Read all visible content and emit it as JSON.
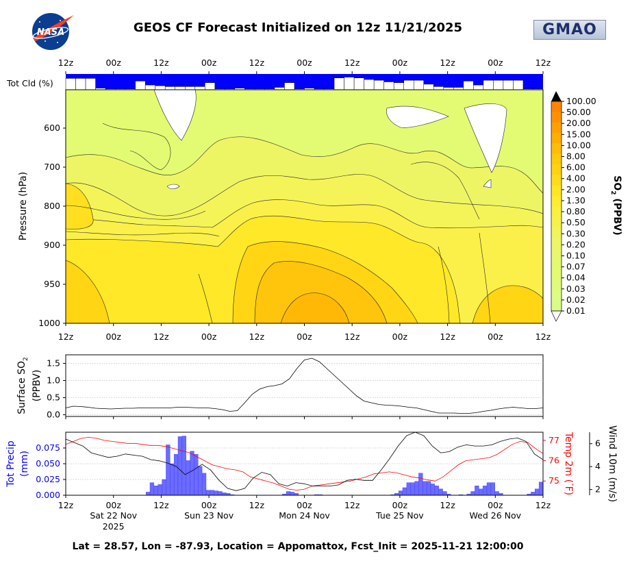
{
  "header": {
    "title": "GEOS CF Forecast Initialized on 12z 11/21/2025",
    "left_logo": "NASA",
    "right_logo": "GMAO"
  },
  "footer": {
    "caption": "Lat = 28.57, Lon = -87.93, Location = Appomattox, Fcst_Init = 2025-11-21 12:00:00"
  },
  "colors": {
    "precip": "#0000ff",
    "temp": "#ff0000",
    "wind": "#000000",
    "cloud": "#0000ff",
    "so2_low": "#e3fb72",
    "so2_high": "#fe8402"
  },
  "chart_data": [
    {
      "id": "cloud-strip",
      "type": "bar",
      "label": "Tot Cld (%)",
      "x_ticks": [
        "12z",
        "00z",
        "12z",
        "00z",
        "12z",
        "00z",
        "12z",
        "00z",
        "12z",
        "00z",
        "12z"
      ],
      "values": [
        72,
        72,
        72,
        10,
        5,
        5,
        5,
        55,
        30,
        25,
        20,
        20,
        20,
        20,
        45,
        5,
        5,
        10,
        5,
        5,
        5,
        15,
        45,
        5,
        10,
        5,
        5,
        75,
        80,
        75,
        65,
        60,
        50,
        45,
        60,
        60,
        35,
        20,
        15,
        15,
        55,
        30,
        60,
        60,
        60,
        60,
        5,
        5
      ]
    },
    {
      "id": "so2-profile",
      "type": "heatmap",
      "ylabel": "Pressure (hPa)",
      "y_ticks": [
        600,
        700,
        800,
        900,
        950,
        1000
      ],
      "ylim": [
        1000,
        500
      ],
      "x_ticks": [
        "12z",
        "00z",
        "12z",
        "00z",
        "12z",
        "00z",
        "12z",
        "00z",
        "12z",
        "00z",
        "12z"
      ],
      "colorbar": {
        "label": "SO",
        "label_sub": "2",
        "label_tail": " (PPBV)",
        "levels": [
          "100.00",
          "50.00",
          "20.00",
          "15.00",
          "10.00",
          "8.00",
          "6.00",
          "4.00",
          "2.00",
          "1.30",
          "0.80",
          "0.50",
          "0.30",
          "0.20",
          "0.10",
          "0.07",
          "0.04",
          "0.03",
          "0.02",
          "0.01"
        ],
        "colors": [
          "#fe8402",
          "#fe9202",
          "#ffa102",
          "#ffae02",
          "#ffbc08",
          "#ffc90e",
          "#ffd214",
          "#ffdc1b",
          "#ffe622",
          "#fdec30",
          "#faf03e",
          "#f6f24c",
          "#f1f45a",
          "#edf666",
          "#e8f76e",
          "#e5f872",
          "#e3fb72",
          "#e0fb7c",
          "#ddfc84",
          "#d8fc8c"
        ]
      }
    },
    {
      "id": "surface-so2",
      "type": "line",
      "ylabel": "Surface SO",
      "ylabel_sub": "2",
      "ylabel_unit": "(PPBV)",
      "y_ticks": [
        "0.0",
        "0.5",
        "1.0",
        "1.5"
      ],
      "ylim": [
        -0.05,
        1.75
      ],
      "values": [
        0.2,
        0.25,
        0.24,
        0.22,
        0.19,
        0.18,
        0.17,
        0.18,
        0.19,
        0.19,
        0.2,
        0.2,
        0.2,
        0.2,
        0.2,
        0.22,
        0.22,
        0.21,
        0.2,
        0.2,
        0.18,
        0.15,
        0.1,
        0.12,
        0.35,
        0.6,
        0.75,
        0.82,
        0.85,
        0.9,
        1.05,
        1.35,
        1.6,
        1.65,
        1.55,
        1.35,
        1.15,
        0.95,
        0.75,
        0.55,
        0.4,
        0.35,
        0.3,
        0.28,
        0.27,
        0.25,
        0.22,
        0.2,
        0.15,
        0.1,
        0.05,
        0.05,
        0.05,
        0.04,
        0.04,
        0.06,
        0.1,
        0.13,
        0.17,
        0.2,
        0.22,
        0.2,
        0.18,
        0.18,
        0.2
      ]
    },
    {
      "id": "met-panel",
      "type": "bar+line",
      "precip": {
        "label": "Tot Precip",
        "unit": "(mm)",
        "y_ticks": [
          "0.000",
          "0.025",
          "0.050",
          "0.075"
        ],
        "ylim": [
          0,
          0.1
        ],
        "values": [
          0,
          0,
          0,
          0,
          0,
          0,
          0,
          0,
          0,
          0,
          0,
          0,
          0,
          0,
          0,
          0,
          0,
          0,
          0,
          0,
          0.005,
          0.02,
          0.015,
          0.017,
          0.025,
          0.08,
          0.05,
          0.065,
          0.093,
          0.094,
          0.055,
          0.07,
          0.065,
          0.046,
          0.035,
          0.008,
          0.008,
          0.007,
          0.006,
          0.004,
          0.003,
          0.001,
          0,
          0,
          0,
          0,
          0,
          0,
          0,
          0,
          0,
          0,
          0,
          0,
          0.002,
          0.006,
          0.005,
          0.003,
          0,
          0,
          0,
          0,
          0.001,
          0.001,
          0,
          0,
          0,
          0,
          0,
          0,
          0,
          0,
          0,
          0,
          0,
          0,
          0,
          0,
          0,
          0,
          0,
          0.001,
          0.003,
          0.007,
          0.012,
          0.02,
          0.02,
          0.022,
          0.035,
          0.022,
          0.022,
          0.018,
          0.015,
          0.01,
          0.006,
          0.002,
          0,
          0,
          0.001,
          0,
          0.002,
          0.006,
          0.015,
          0.01,
          0.015,
          0.02,
          0.02,
          0.006,
          0.003,
          0,
          0,
          0,
          0,
          0,
          0,
          0.002,
          0.005,
          0.01,
          0.021
        ]
      },
      "temp": {
        "label": "Temp 2m (",
        "unit_deg": "°",
        "unit_tail": "F)",
        "y_ticks": [
          "75",
          "76",
          "77"
        ],
        "ylim": [
          74.3,
          77.4
        ],
        "values": [
          76.8,
          76.95,
          77.1,
          77.15,
          77.1,
          77.0,
          76.95,
          76.9,
          76.85,
          76.85,
          76.8,
          76.75,
          76.75,
          76.7,
          76.6,
          76.5,
          76.4,
          76.2,
          76.0,
          75.8,
          75.7,
          75.6,
          75.55,
          75.45,
          75.2,
          75.1,
          75.0,
          74.9,
          74.75,
          74.6,
          74.55,
          74.6,
          74.75,
          74.8,
          74.85,
          74.9,
          74.95,
          75.0,
          75.1,
          75.2,
          75.35,
          75.4,
          75.45,
          75.4,
          75.3,
          75.2,
          75.15,
          75.05,
          75.0,
          75.2,
          75.5,
          75.8,
          76.0,
          76.05,
          76.1,
          76.15,
          76.3,
          76.55,
          76.8,
          76.95,
          76.9,
          76.6,
          76.35
        ]
      },
      "wind": {
        "label": "Wind 10m (m/s)",
        "y_ticks": [
          "2",
          "4",
          "6"
        ],
        "ylim": [
          1.5,
          7.0
        ],
        "values": [
          6.4,
          6.1,
          5.8,
          5.2,
          5.0,
          4.8,
          4.9,
          5.1,
          5.0,
          4.9,
          4.6,
          4.5,
          4.3,
          4.0,
          3.3,
          3.7,
          4.2,
          3.7,
          2.8,
          2.1,
          1.9,
          2.1,
          3.0,
          3.5,
          3.3,
          2.5,
          2.3,
          2.6,
          2.5,
          2.3,
          2.3,
          2.3,
          2.4,
          2.8,
          2.9,
          2.8,
          2.8,
          3.7,
          4.7,
          5.8,
          6.7,
          7.0,
          6.7,
          5.8,
          5.2,
          5.3,
          5.7,
          5.9,
          5.8,
          5.8,
          5.9,
          6.2,
          6.4,
          6.5,
          6.2,
          5.1,
          4.6
        ]
      },
      "x_ticks": [
        "12z",
        "00z",
        "12z",
        "00z",
        "12z",
        "00z",
        "12z",
        "00z",
        "12z",
        "00z",
        "12z"
      ],
      "day_labels": [
        "Sat 22 Nov",
        "Sun 23 Nov",
        "Mon 24 Nov",
        "Tue 25 Nov",
        "Wed 26 Nov"
      ],
      "year_label": "2025"
    }
  ]
}
